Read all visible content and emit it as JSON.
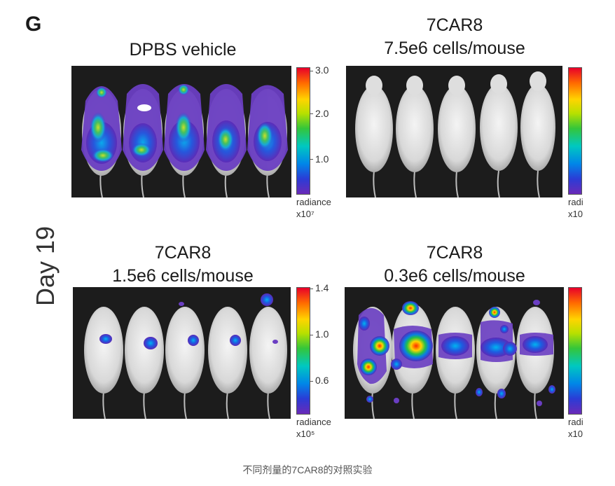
{
  "figure": {
    "panel_label": "G",
    "timepoint_label": "Day 19",
    "caption": "不同剂量的7CAR8的对照实验",
    "panels": [
      {
        "title_line1": "DPBS vehicle",
        "title_line2": "",
        "ticks": [
          "3.0",
          "2.0",
          "1.0"
        ],
        "unit_line1": "radiance",
        "unit_line2": "x10⁷"
      },
      {
        "title_line1": "7CAR8",
        "title_line2": "7.5e6 cells/mouse",
        "ticks": [],
        "unit_line1": "radi",
        "unit_line2": "x10"
      },
      {
        "title_line1": "7CAR8",
        "title_line2": "1.5e6 cells/mouse",
        "ticks": [
          "1.4",
          "1.0",
          "0.6"
        ],
        "unit_line1": "radiance",
        "unit_line2": "x10⁵"
      },
      {
        "title_line1": "7CAR8",
        "title_line2": "0.3e6 cells/mouse",
        "ticks": [],
        "unit_line1": "radi",
        "unit_line2": "x10"
      }
    ]
  }
}
